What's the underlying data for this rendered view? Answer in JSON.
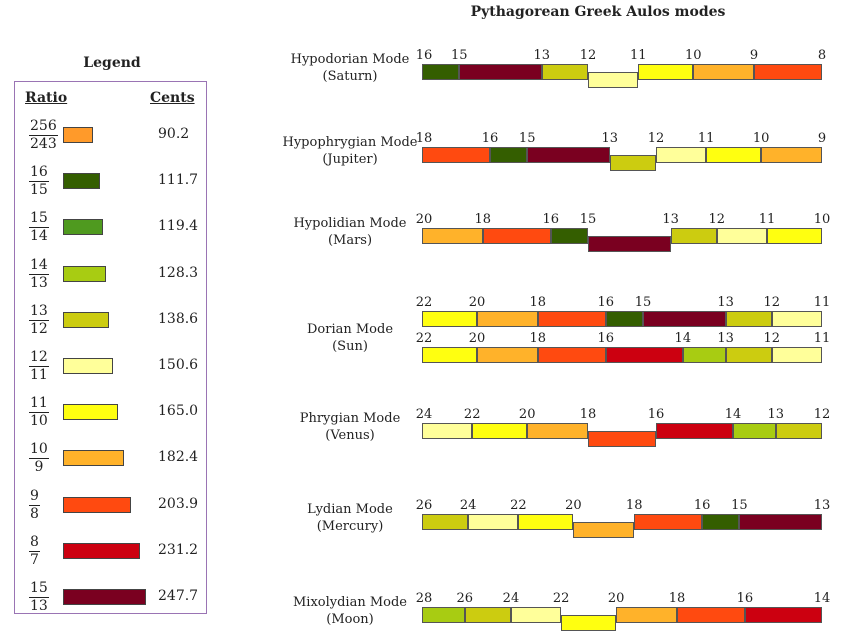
{
  "title": "Pythagorean Greek Aulos modes",
  "legend": {
    "title": "Legend",
    "ratio_header": "Ratio",
    "cents_header": "Cents",
    "items": [
      {
        "num": "256",
        "den": "243",
        "cents": "90.2",
        "color": "#ff9a2a"
      },
      {
        "num": "16",
        "den": "15",
        "cents": "111.7",
        "color": "#345e00"
      },
      {
        "num": "15",
        "den": "14",
        "cents": "119.4",
        "color": "#4f9a1f"
      },
      {
        "num": "14",
        "den": "13",
        "cents": "128.3",
        "color": "#a8cc12"
      },
      {
        "num": "13",
        "den": "12",
        "cents": "138.6",
        "color": "#cccc10"
      },
      {
        "num": "12",
        "den": "11",
        "cents": "150.6",
        "color": "#ffff9a"
      },
      {
        "num": "11",
        "den": "10",
        "cents": "165.0",
        "color": "#ffff10"
      },
      {
        "num": "10",
        "den": "9",
        "cents": "182.4",
        "color": "#ffb22a"
      },
      {
        "num": "9",
        "den": "8",
        "cents": "203.9",
        "color": "#ff4a10"
      },
      {
        "num": "8",
        "den": "7",
        "cents": "231.2",
        "color": "#cc0010"
      },
      {
        "num": "15",
        "den": "13",
        "cents": "247.7",
        "color": "#7a0020"
      }
    ]
  },
  "modes": [
    {
      "name": "Hypodorian Mode",
      "planet": "(Saturn)",
      "rows": [
        {
          "numbers": [
            "16",
            "15",
            "13",
            "12",
            "11",
            "10",
            "9",
            "8"
          ]
        }
      ]
    },
    {
      "name": "Hypophrygian Mode",
      "planet": "(Jupiter)",
      "rows": [
        {
          "numbers": [
            "18",
            "16",
            "15",
            "13",
            "12",
            "11",
            "10",
            "9"
          ]
        }
      ]
    },
    {
      "name": "Hypolidian Mode",
      "planet": "(Mars)",
      "rows": [
        {
          "numbers": [
            "20",
            "18",
            "16",
            "15",
            "13",
            "12",
            "11",
            "10"
          ]
        }
      ]
    },
    {
      "name": "Dorian Mode",
      "planet": "(Sun)",
      "rows": [
        {
          "numbers": [
            "22",
            "20",
            "18",
            "16",
            "15",
            "13",
            "12",
            "11"
          ]
        },
        {
          "numbers": [
            "22",
            "20",
            "18",
            "16",
            "14",
            "13",
            "12",
            "11"
          ]
        }
      ]
    },
    {
      "name": "Phrygian Mode",
      "planet": "(Venus)",
      "rows": [
        {
          "numbers": [
            "24",
            "22",
            "20",
            "18",
            "16",
            "14",
            "13",
            "12"
          ]
        }
      ]
    },
    {
      "name": "Lydian Mode",
      "planet": "(Mercury)",
      "rows": [
        {
          "numbers": [
            "26",
            "24",
            "22",
            "20",
            "18",
            "16",
            "15",
            "13"
          ]
        }
      ]
    },
    {
      "name": "Mixolydian Mode",
      "planet": "(Moon)",
      "rows": [
        {
          "numbers": [
            "28",
            "26",
            "24",
            "22",
            "20",
            "18",
            "16",
            "14"
          ]
        }
      ]
    }
  ]
}
